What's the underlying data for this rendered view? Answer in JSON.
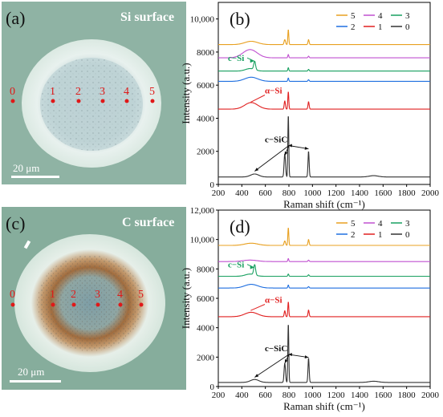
{
  "micrographs": [
    {
      "panel_label": "(a)",
      "title": "Si surface",
      "scalebar": "20 μm",
      "points": [
        "0",
        "1",
        "2",
        "3",
        "4",
        "5"
      ],
      "colors": {
        "bg": "#8fb3a4",
        "halo": "#eaf2ee",
        "core": "#b8ced0",
        "marker": "#e01818"
      }
    },
    {
      "panel_label": "(c)",
      "title": "C surface",
      "scalebar": "20 μm",
      "points": [
        "0",
        "1",
        "2",
        "3",
        "4",
        "5"
      ],
      "colors": {
        "bg": "#86ad9c",
        "halo": "#e6efe9",
        "ring": "#a26e3e",
        "core": "#86a6ad",
        "marker": "#e01818"
      }
    }
  ],
  "chart_data": [
    {
      "type": "line",
      "panel_label": "(b)",
      "xlabel": "Raman shift (cm⁻¹)",
      "ylabel": "Intensity (a.u.)",
      "xlim": [
        200,
        2000
      ],
      "ylim": [
        0,
        11000
      ],
      "xticks": [
        "200",
        "400",
        "600",
        "800",
        "1000",
        "1200",
        "1400",
        "1600",
        "1800",
        "2000"
      ],
      "yticks": [
        0,
        2000,
        4000,
        6000,
        8000,
        10000
      ],
      "ytick_labels": [
        "0",
        "2000",
        "4000",
        "6000",
        "8000",
        "10,000"
      ],
      "legend": [
        "5",
        "4",
        "3",
        "2",
        "1",
        "0"
      ],
      "legend_position": "top-right",
      "series": [
        {
          "name": "0",
          "color": "#333333",
          "baseline": 450,
          "peaks": [
            [
              509,
              180,
              35
            ],
            [
              765,
              1400,
              6
            ],
            [
              795,
              3750,
              4
            ],
            [
              967,
              1550,
              5
            ],
            [
              1520,
              80,
              40
            ]
          ]
        },
        {
          "name": "1",
          "color": "#e02020",
          "baseline": 4550,
          "peaks": [
            [
              480,
              400,
              55
            ],
            [
              765,
              500,
              5
            ],
            [
              795,
              1050,
              4
            ],
            [
              967,
              450,
              5
            ]
          ]
        },
        {
          "name": "2",
          "color": "#1f6fe0",
          "baseline": 6230,
          "peaks": [
            [
              480,
              250,
              55
            ],
            [
              795,
              200,
              4
            ],
            [
              967,
              100,
              5
            ]
          ]
        },
        {
          "name": "3",
          "color": "#18a060",
          "baseline": 6850,
          "peaks": [
            [
              509,
              500,
              8
            ],
            [
              470,
              150,
              40
            ],
            [
              795,
              200,
              4
            ],
            [
              967,
              100,
              5
            ]
          ]
        },
        {
          "name": "4",
          "color": "#c050d0",
          "baseline": 7650,
          "peaks": [
            [
              470,
              500,
              60
            ],
            [
              795,
              200,
              4
            ],
            [
              967,
              100,
              5
            ]
          ]
        },
        {
          "name": "5",
          "color": "#e8a020",
          "baseline": 8450,
          "peaks": [
            [
              480,
              200,
              55
            ],
            [
              765,
              300,
              6
            ],
            [
              795,
              900,
              4
            ],
            [
              967,
              300,
              5
            ]
          ]
        }
      ],
      "annotations": {
        "c_si": "c−Si",
        "a_si": "α−Si",
        "c_sic": "c−SiC"
      }
    },
    {
      "type": "line",
      "panel_label": "(d)",
      "xlabel": "Raman shift (cm⁻¹)",
      "ylabel": "Intensity (a.u.)",
      "xlim": [
        200,
        2000
      ],
      "ylim": [
        0,
        12000
      ],
      "xticks": [
        "200",
        "400",
        "600",
        "800",
        "1000",
        "1200",
        "1400",
        "1600",
        "1800",
        "2000"
      ],
      "yticks": [
        0,
        2000,
        4000,
        6000,
        8000,
        10000,
        12000
      ],
      "ytick_labels": [
        "0",
        "2000",
        "4000",
        "6000",
        "8000",
        "10,000",
        "12,000"
      ],
      "legend": [
        "5",
        "4",
        "3",
        "2",
        "1",
        "0"
      ],
      "legend_position": "top-right",
      "series": [
        {
          "name": "0",
          "color": "#333333",
          "baseline": 280,
          "peaks": [
            [
              509,
              200,
              35
            ],
            [
              765,
              1300,
              6
            ],
            [
              795,
              4000,
              4
            ],
            [
              967,
              1650,
              5
            ],
            [
              1520,
              80,
              40
            ]
          ]
        },
        {
          "name": "1",
          "color": "#e02020",
          "baseline": 4750,
          "peaks": [
            [
              480,
              300,
              55
            ],
            [
              765,
              400,
              5
            ],
            [
              795,
              1000,
              4
            ],
            [
              967,
              450,
              5
            ]
          ]
        },
        {
          "name": "2",
          "color": "#1f6fe0",
          "baseline": 6700,
          "peaks": [
            [
              480,
              250,
              55
            ],
            [
              795,
              200,
              4
            ],
            [
              967,
              100,
              5
            ]
          ]
        },
        {
          "name": "3",
          "color": "#18a060",
          "baseline": 7500,
          "peaks": [
            [
              509,
              700,
              8
            ],
            [
              470,
              150,
              40
            ],
            [
              795,
              150,
              4
            ],
            [
              967,
              100,
              5
            ]
          ]
        },
        {
          "name": "4",
          "color": "#c050d0",
          "baseline": 8500,
          "peaks": [
            [
              470,
              100,
              60
            ],
            [
              795,
              200,
              4
            ],
            [
              967,
              100,
              5
            ]
          ]
        },
        {
          "name": "5",
          "color": "#e8a020",
          "baseline": 9600,
          "peaks": [
            [
              480,
              150,
              55
            ],
            [
              765,
              300,
              6
            ],
            [
              795,
              1200,
              4
            ],
            [
              967,
              400,
              5
            ]
          ]
        }
      ],
      "annotations": {
        "c_si": "c−Si",
        "a_si": "α−Si",
        "c_sic": "c−SiC"
      }
    }
  ]
}
